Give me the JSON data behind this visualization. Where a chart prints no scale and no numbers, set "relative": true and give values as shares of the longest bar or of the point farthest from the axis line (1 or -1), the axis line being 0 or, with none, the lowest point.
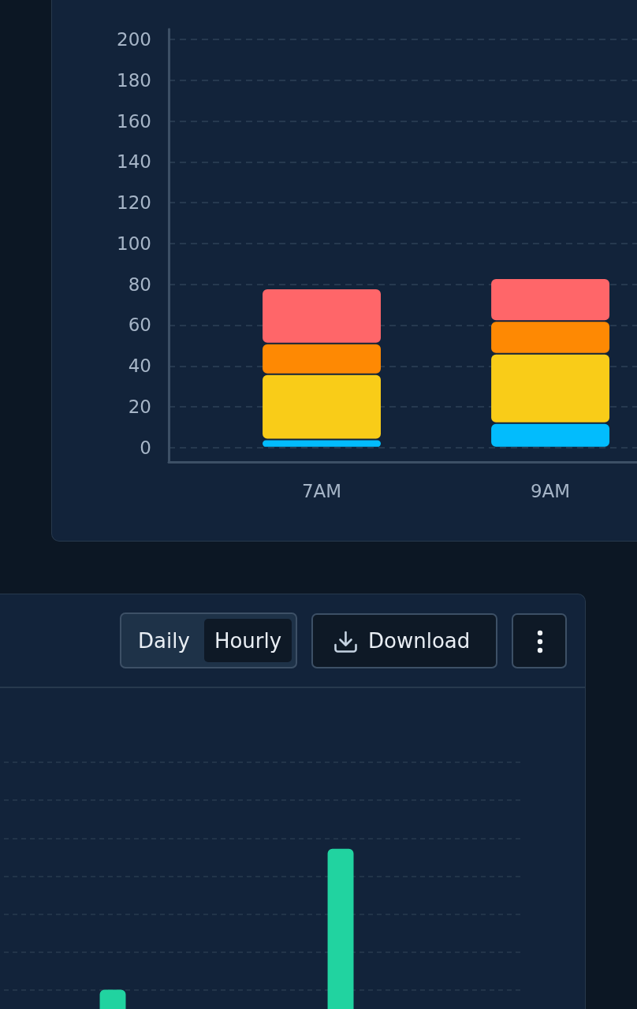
{
  "chart_data": [
    {
      "type": "bar",
      "stacked": true,
      "categories": [
        "7AM",
        "9AM"
      ],
      "series": [
        {
          "color": "#02bcfd",
          "values": [
            4,
            12
          ]
        },
        {
          "color": "#f9cc18",
          "values": [
            32,
            34
          ]
        },
        {
          "color": "#fe8903",
          "values": [
            15,
            16
          ]
        },
        {
          "color": "#ff6669",
          "values": [
            27,
            21
          ]
        }
      ],
      "ylim": [
        -7,
        205
      ],
      "yticks": [
        0,
        20,
        40,
        60,
        80,
        100,
        120,
        140,
        160,
        180,
        200
      ],
      "grid": "y"
    },
    {
      "type": "bar",
      "relative": true,
      "categories": [
        null,
        null
      ],
      "values": [
        0.12,
        1
      ],
      "color": "#21d3a0",
      "grid": "y",
      "annotations": [
        "Daily",
        "Hourly",
        "Download"
      ]
    }
  ]
}
